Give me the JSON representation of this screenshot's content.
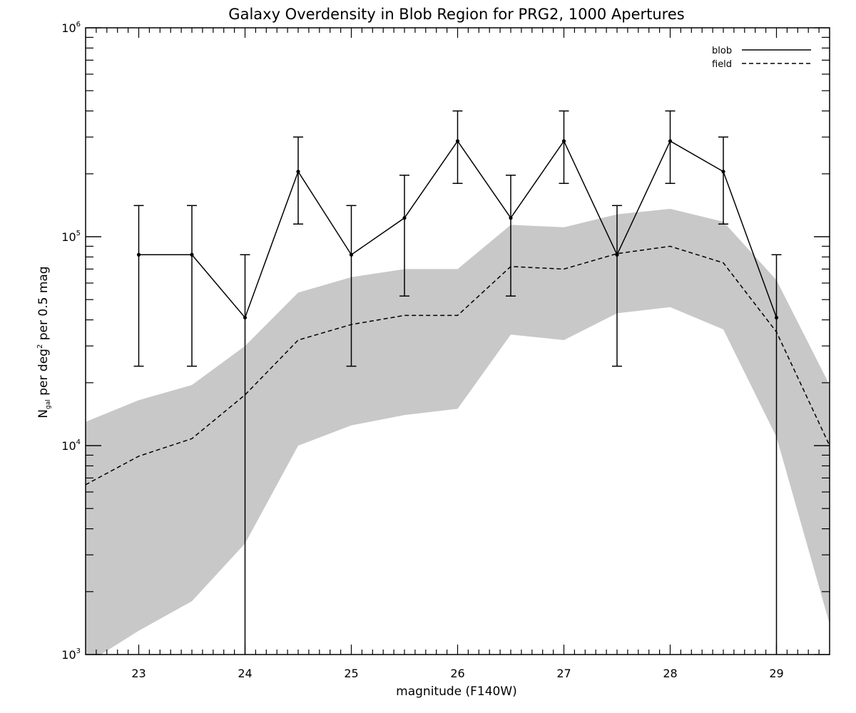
{
  "chart_data": {
    "type": "line",
    "title": "Galaxy Overdensity in Blob Region for PRG2, 1000 Apertures",
    "xlabel": "magnitude (F140W)",
    "ylabel": {
      "base": "N",
      "sub": "gal",
      "mid": " per deg",
      "sup": "2",
      "rest": " per 0.5 mag"
    },
    "xlim": [
      22.5,
      29.5
    ],
    "ylim": [
      1000,
      1000000
    ],
    "yscale": "log",
    "x_ticks": [
      "23",
      "24",
      "25",
      "26",
      "27",
      "28",
      "29"
    ],
    "y_ticks": [
      {
        "base": "10",
        "exp": "3"
      },
      {
        "base": "10",
        "exp": "4"
      },
      {
        "base": "10",
        "exp": "5"
      },
      {
        "base": "10",
        "exp": "6"
      }
    ],
    "legend": {
      "placement": "top-right",
      "entries": [
        {
          "label": "blob",
          "style": "solid"
        },
        {
          "label": "field",
          "style": "dashed"
        }
      ]
    },
    "series": [
      {
        "name": "blob",
        "style": "solid",
        "color": "#000000",
        "x": [
          23.0,
          23.5,
          24.0,
          24.5,
          25.0,
          25.5,
          26.0,
          26.5,
          27.0,
          27.5,
          28.0,
          28.5,
          29.0
        ],
        "y": [
          82000,
          82000,
          41000,
          205000,
          82000,
          123000,
          287000,
          123000,
          287000,
          82000,
          287000,
          205000,
          41000
        ],
        "err_low": [
          24000,
          24000,
          1000,
          115000,
          24000,
          52000,
          180000,
          52000,
          180000,
          24000,
          180000,
          115000,
          1000
        ],
        "err_high": [
          141000,
          141000,
          82000,
          300000,
          141000,
          197000,
          400000,
          197000,
          400000,
          141000,
          400000,
          300000,
          82000
        ]
      },
      {
        "name": "field",
        "style": "dashed",
        "color": "#000000",
        "x": [
          22.5,
          23.0,
          23.5,
          24.0,
          24.5,
          25.0,
          25.5,
          26.0,
          26.5,
          27.0,
          27.5,
          28.0,
          28.5,
          29.0,
          29.5
        ],
        "y": [
          6500,
          8900,
          10800,
          17500,
          32000,
          38000,
          42000,
          42000,
          72000,
          70000,
          83000,
          90000,
          75000,
          35000,
          10000
        ],
        "band_low": [
          900,
          1300,
          1800,
          3400,
          10000,
          12500,
          14000,
          15000,
          34000,
          32000,
          43000,
          46000,
          36000,
          11000,
          1400
        ],
        "band_high": [
          13000,
          16500,
          19500,
          30000,
          54000,
          64000,
          70000,
          70000,
          114000,
          111000,
          128000,
          136000,
          118000,
          62000,
          19500
        ],
        "band_color": "#c8c8c8"
      }
    ]
  }
}
